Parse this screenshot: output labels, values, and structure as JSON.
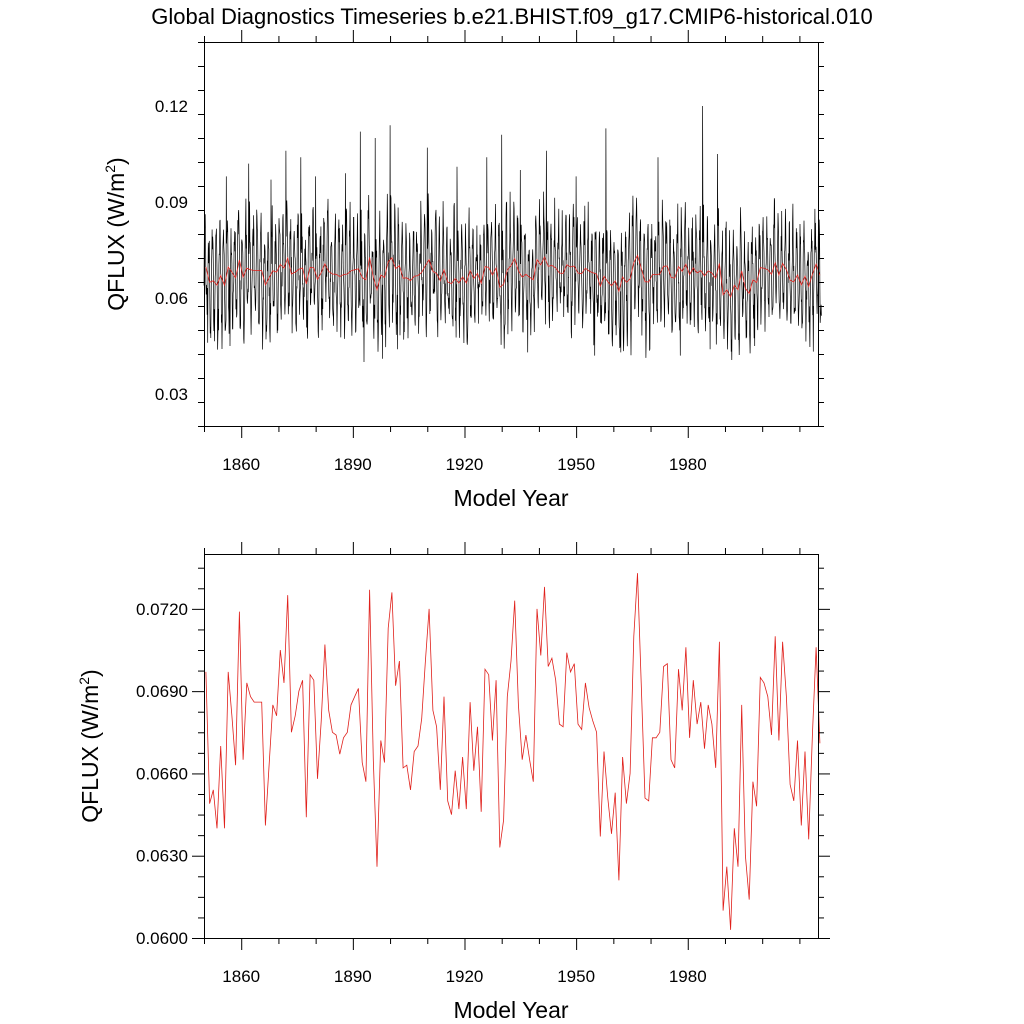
{
  "title": "Global Diagnostics Timeseries b.e21.BHIST.f09_g17.CMIP6-historical.010",
  "colors": {
    "monthly": "#000000",
    "annual": "#e0201b",
    "frame": "#000000"
  },
  "chart_data": [
    {
      "type": "line",
      "xlabel": "Model Year",
      "ylabel_main": "QFLUX (W/m",
      "ylabel_sup": "2",
      "ylabel_close": ")",
      "xlim": [
        1850,
        2015
      ],
      "ylim": [
        0.02,
        0.14
      ],
      "x_ticks": [
        1860,
        1890,
        1920,
        1950,
        1980
      ],
      "x_tick_labels": [
        "1860",
        "1890",
        "1920",
        "1950",
        "1980"
      ],
      "y_ticks": [
        0.03,
        0.06,
        0.09,
        0.12
      ],
      "y_tick_labels": [
        "0.03",
        "0.06",
        "0.09",
        "0.12"
      ],
      "grid": false,
      "series": [
        {
          "style": "monthly-black",
          "x_start": 1850,
          "x_step": 0.0833333,
          "baseline": 0.0675,
          "seasonal_amplitude": 0.014,
          "noise_amplitude": 0.006,
          "max": 0.12,
          "min": 0.04,
          "peaks": [
            [
              1856,
              0.098
            ],
            [
              1862,
              0.102
            ],
            [
              1868,
              0.097
            ],
            [
              1872,
              0.106
            ],
            [
              1876,
              0.104
            ],
            [
              1880,
              0.098
            ],
            [
              1888,
              0.099
            ],
            [
              1892,
              0.112
            ],
            [
              1896,
              0.11
            ],
            [
              1900,
              0.114
            ],
            [
              1910,
              0.107
            ],
            [
              1918,
              0.101
            ],
            [
              1926,
              0.104
            ],
            [
              1930,
              0.111
            ],
            [
              1935,
              0.1
            ],
            [
              1942,
              0.106
            ],
            [
              1950,
              0.098
            ],
            [
              1958,
              0.113
            ],
            [
              1962,
              0.109
            ],
            [
              1972,
              0.104
            ],
            [
              1984,
              0.12
            ],
            [
              1988,
              0.105
            ]
          ],
          "troughs": [
            [
              1851,
              0.046
            ],
            [
              1857,
              0.045
            ],
            [
              1893,
              0.04
            ],
            [
              1898,
              0.041
            ],
            [
              1902,
              0.044
            ],
            [
              1937,
              0.043
            ],
            [
              1955,
              0.042
            ],
            [
              1962,
              0.043
            ],
            [
              1978,
              0.042
            ],
            [
              1986,
              0.044
            ],
            [
              1998,
              0.045
            ]
          ]
        },
        {
          "style": "annual-red",
          "source": "annual_mean"
        }
      ]
    },
    {
      "type": "line",
      "xlabel": "Model Year",
      "ylabel_main": "QFLUX (W/m",
      "ylabel_sup": "2",
      "ylabel_close": ")",
      "xlim": [
        1850,
        2015
      ],
      "ylim": [
        0.06,
        0.074
      ],
      "x_ticks": [
        1860,
        1890,
        1920,
        1950,
        1980
      ],
      "x_tick_labels": [
        "1860",
        "1890",
        "1920",
        "1950",
        "1980"
      ],
      "y_ticks": [
        0.06,
        0.063,
        0.066,
        0.069,
        0.072
      ],
      "y_tick_labels": [
        "0.0600",
        "0.0630",
        "0.0660",
        "0.0690",
        "0.0720"
      ],
      "grid": false,
      "series": [
        {
          "style": "annual-red",
          "x_start": 1850,
          "values": [
            0.0697,
            0.0649,
            0.0654,
            0.064,
            0.067,
            0.064,
            0.0697,
            0.0681,
            0.0663,
            0.0719,
            0.0665,
            0.0693,
            0.0688,
            0.0686,
            0.0686,
            0.0686,
            0.0641,
            0.0663,
            0.0685,
            0.0681,
            0.0705,
            0.0693,
            0.0725,
            0.0675,
            0.0681,
            0.069,
            0.0694,
            0.0644,
            0.0696,
            0.0694,
            0.0658,
            0.0679,
            0.0707,
            0.0683,
            0.0675,
            0.0674,
            0.0667,
            0.0673,
            0.0675,
            0.0685,
            0.0688,
            0.0691,
            0.0664,
            0.0657,
            0.0727,
            0.0665,
            0.0626,
            0.0672,
            0.0664,
            0.0713,
            0.0726,
            0.0692,
            0.0701,
            0.0662,
            0.0663,
            0.0654,
            0.0668,
            0.067,
            0.068,
            0.0701,
            0.072,
            0.0683,
            0.0677,
            0.0654,
            0.0688,
            0.065,
            0.0645,
            0.0661,
            0.0647,
            0.0666,
            0.0647,
            0.0686,
            0.0661,
            0.0677,
            0.0646,
            0.0698,
            0.0696,
            0.0672,
            0.0694,
            0.0633,
            0.0643,
            0.0688,
            0.0701,
            0.0723,
            0.0685,
            0.0665,
            0.0674,
            0.0665,
            0.0657,
            0.072,
            0.0703,
            0.0728,
            0.0699,
            0.0702,
            0.0694,
            0.0678,
            0.0677,
            0.0704,
            0.0697,
            0.07,
            0.0678,
            0.0676,
            0.0693,
            0.0684,
            0.0679,
            0.0675,
            0.0637,
            0.0668,
            0.0651,
            0.0638,
            0.0653,
            0.0621,
            0.0666,
            0.0649,
            0.066,
            0.071,
            0.0733,
            0.0693,
            0.0651,
            0.065,
            0.0673,
            0.0673,
            0.0675,
            0.0699,
            0.07,
            0.0665,
            0.0662,
            0.0698,
            0.0683,
            0.0706,
            0.0673,
            0.0694,
            0.0678,
            0.0686,
            0.0669,
            0.0685,
            0.0678,
            0.0662,
            0.0708,
            0.061,
            0.0626,
            0.0603,
            0.064,
            0.0626,
            0.0685,
            0.063,
            0.0614,
            0.0657,
            0.0648,
            0.0695,
            0.0693,
            0.0688,
            0.0674,
            0.071,
            0.0672,
            0.0708,
            0.0688,
            0.0656,
            0.065,
            0.0672,
            0.0641,
            0.0668,
            0.0636,
            0.0674,
            0.0706,
            0.0671
          ]
        }
      ]
    }
  ]
}
